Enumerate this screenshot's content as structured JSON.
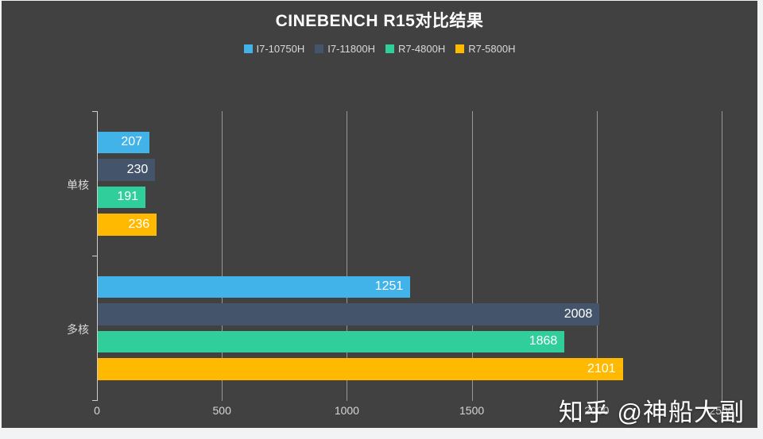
{
  "page": {
    "background": "#f2f3f5",
    "panel_background": "#414141"
  },
  "chart_data": {
    "type": "bar",
    "orientation": "horizontal",
    "title": "CINEBENCH R15对比结果",
    "categories": [
      "单核",
      "多核"
    ],
    "series": [
      {
        "name": "I7-10750H",
        "color": "#41b3e8",
        "values": [
          207,
          1251
        ]
      },
      {
        "name": "I7-11800H",
        "color": "#44546a",
        "values": [
          230,
          2008
        ]
      },
      {
        "name": "R7-4800H",
        "color": "#2fce9b",
        "values": [
          191,
          1868
        ]
      },
      {
        "name": "R7-5800H",
        "color": "#ffb900",
        "values": [
          236,
          2101
        ]
      }
    ],
    "xlim": [
      0,
      2500
    ],
    "x_ticks": [
      0,
      500,
      1000,
      1500,
      2000,
      2500
    ],
    "grid": true,
    "legend_position": "top",
    "value_labels": "inside-end"
  },
  "colors": {
    "title_text": "#ffffff",
    "legend_text": "#d9d9d9",
    "axis_text": "#d6d6d6",
    "gridline": "#979797",
    "axis_line": "#cfcfcf",
    "value_label_text": "#ffffff"
  },
  "watermark": {
    "text": "知乎 @神船大副"
  }
}
